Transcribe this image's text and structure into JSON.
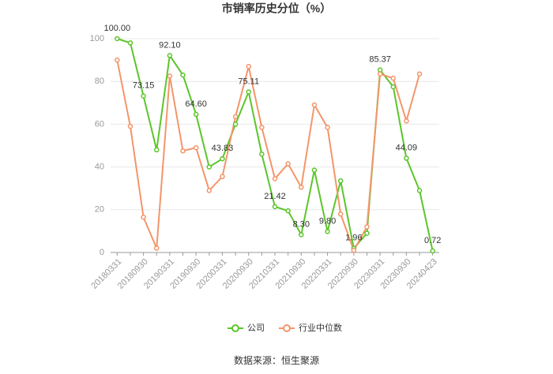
{
  "chart_data": {
    "type": "line",
    "title": "市销率历史分位（%）",
    "categories": [
      "20180331",
      null,
      "20180930",
      null,
      "20190331",
      null,
      "20190930",
      null,
      "20200331",
      null,
      "20200930",
      null,
      "20210331",
      null,
      "20210930",
      null,
      "20220331",
      null,
      "20220930",
      null,
      "20230331",
      null,
      "20230930",
      null,
      "20240423"
    ],
    "series": [
      {
        "name": "公司",
        "color": "#5cc52a",
        "values": [
          100,
          98,
          73.15,
          48,
          92.1,
          83,
          64.6,
          40,
          43.83,
          60,
          75.11,
          46,
          21.42,
          19.5,
          8.3,
          38.5,
          9.8,
          33.5,
          1.96,
          9,
          85.37,
          77.5,
          44.09,
          29,
          0.72
        ],
        "value_labels": [
          "100.00",
          null,
          "73.15",
          null,
          "92.10",
          null,
          "64.60",
          null,
          "43.83",
          null,
          "75.11",
          null,
          "21.42",
          null,
          "8.30",
          null,
          "9.80",
          null,
          "1.96",
          null,
          "85.37",
          null,
          "44.09",
          null,
          "0.72"
        ]
      },
      {
        "name": "行业中位数",
        "color": "#f4956a",
        "values": [
          90,
          59,
          16.5,
          2,
          82.5,
          47.5,
          49,
          29,
          35.5,
          63.5,
          87,
          58.5,
          34.5,
          41.5,
          30.5,
          69,
          58.5,
          18,
          1,
          12,
          83.5,
          81.5,
          61.5,
          83.5,
          null
        ]
      }
    ],
    "ylim": [
      0,
      100
    ],
    "yticks": [
      0,
      20,
      40,
      60,
      80,
      100
    ],
    "grid": true,
    "legend": "bottom",
    "source": "数据来源：恒生聚源"
  }
}
